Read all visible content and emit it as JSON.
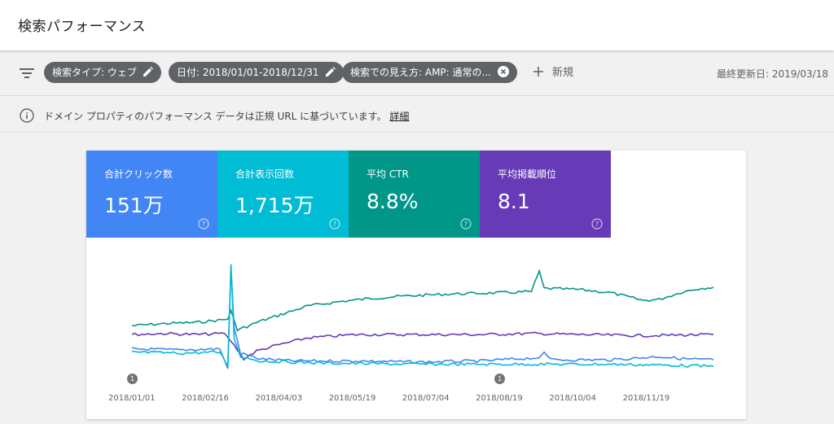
{
  "header": {
    "title": "検索パフォーマンス"
  },
  "filters": {
    "chips": [
      {
        "label": "検索タイプ: ウェブ"
      },
      {
        "label": "日付: 2018/01/01-2018/12/31"
      },
      {
        "label": "検索での見え方: AMP: 通常の..."
      }
    ],
    "new_label": "新規",
    "last_updated": "最終更新日: 2019/03/18"
  },
  "info": {
    "text": "ドメイン プロパティのパフォーマンス データは正規 URL に基づいています。",
    "link": "詳細"
  },
  "metrics": [
    {
      "label": "合計クリック数",
      "value": "151万",
      "color": "#4285f4"
    },
    {
      "label": "合計表示回数",
      "value": "1,715万",
      "color": "#00bcd4"
    },
    {
      "label": "平均 CTR",
      "value": "8.8%",
      "color": "#009688"
    },
    {
      "label": "平均掲載順位",
      "value": "8.1",
      "color": "#673ab7"
    }
  ],
  "chart_data": {
    "type": "line",
    "x_tick_labels": [
      "2018/01/01",
      "2018/02/16",
      "2018/04/03",
      "2018/05/19",
      "2018/07/04",
      "2018/08/19",
      "2018/10/04",
      "2018/11/19"
    ],
    "annotations": [
      {
        "label": "1",
        "date": "2018/01/01"
      },
      {
        "label": "1",
        "date": "2018/08/19"
      }
    ],
    "grid": false,
    "series": [
      {
        "metric": "平均 CTR",
        "color": "#009688",
        "points": [
          [
            0,
            0.58
          ],
          [
            20,
            0.56
          ],
          [
            40,
            0.55
          ],
          [
            60,
            0.52
          ],
          [
            62,
            0.44
          ],
          [
            66,
            0.62
          ],
          [
            80,
            0.54
          ],
          [
            95,
            0.47
          ],
          [
            110,
            0.4
          ],
          [
            130,
            0.36
          ],
          [
            150,
            0.33
          ],
          [
            170,
            0.31
          ],
          [
            200,
            0.29
          ],
          [
            230,
            0.28
          ],
          [
            250,
            0.27
          ],
          [
            255,
            0.08
          ],
          [
            258,
            0.24
          ],
          [
            280,
            0.25
          ],
          [
            300,
            0.28
          ],
          [
            320,
            0.35
          ],
          [
            330,
            0.34
          ],
          [
            345,
            0.27
          ],
          [
            355,
            0.24
          ],
          [
            364,
            0.23
          ]
        ]
      },
      {
        "metric": "平均掲載順位",
        "color": "#673ab7",
        "points": [
          [
            0,
            0.66
          ],
          [
            20,
            0.65
          ],
          [
            40,
            0.66
          ],
          [
            58,
            0.65
          ],
          [
            62,
            0.72
          ],
          [
            70,
            0.88
          ],
          [
            78,
            0.81
          ],
          [
            90,
            0.76
          ],
          [
            110,
            0.69
          ],
          [
            140,
            0.66
          ],
          [
            180,
            0.66
          ],
          [
            220,
            0.66
          ],
          [
            250,
            0.65
          ],
          [
            280,
            0.66
          ],
          [
            320,
            0.67
          ],
          [
            364,
            0.66
          ]
        ]
      },
      {
        "metric": "合計クリック数",
        "color": "#4285f4",
        "points": [
          [
            0,
            0.79
          ],
          [
            30,
            0.8
          ],
          [
            55,
            0.79
          ],
          [
            60,
            0.97
          ],
          [
            62,
            0.05
          ],
          [
            64,
            0.6
          ],
          [
            68,
            0.83
          ],
          [
            80,
            0.88
          ],
          [
            100,
            0.9
          ],
          [
            140,
            0.9
          ],
          [
            180,
            0.91
          ],
          [
            220,
            0.9
          ],
          [
            230,
            0.89
          ],
          [
            255,
            0.87
          ],
          [
            258,
            0.82
          ],
          [
            262,
            0.89
          ],
          [
            300,
            0.89
          ],
          [
            330,
            0.86
          ],
          [
            345,
            0.88
          ],
          [
            364,
            0.89
          ]
        ]
      },
      {
        "metric": "合計表示回数",
        "color": "#00bcd4",
        "points": [
          [
            0,
            0.82
          ],
          [
            30,
            0.83
          ],
          [
            55,
            0.82
          ],
          [
            60,
            0.94
          ],
          [
            62,
            0.02
          ],
          [
            64,
            0.7
          ],
          [
            68,
            0.86
          ],
          [
            80,
            0.9
          ],
          [
            120,
            0.92
          ],
          [
            180,
            0.93
          ],
          [
            240,
            0.93
          ],
          [
            300,
            0.93
          ],
          [
            340,
            0.94
          ],
          [
            364,
            0.95
          ]
        ]
      }
    ]
  }
}
